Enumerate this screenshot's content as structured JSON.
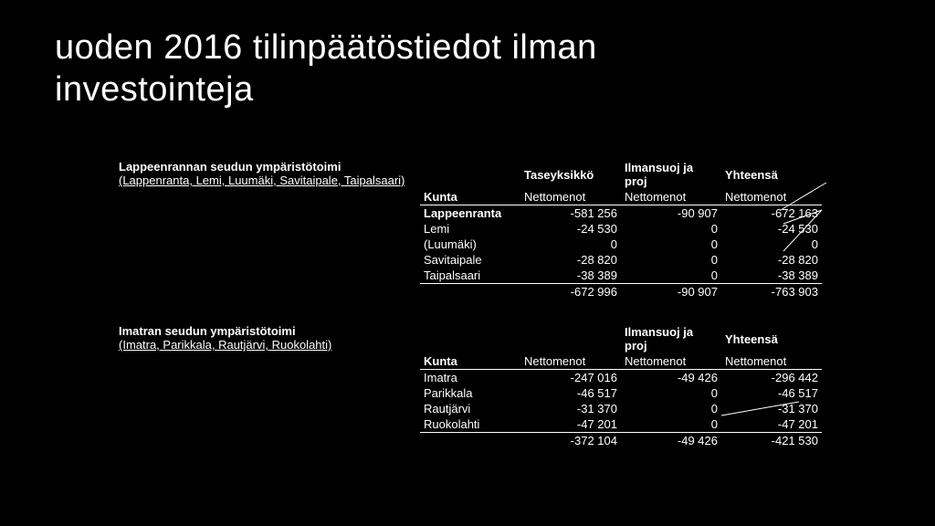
{
  "title_line1": "uoden 2016 tilinpäätöstiedot ilman",
  "title_line2": "investointeja",
  "section1": {
    "heading": "Lappeenrannan seudun ympäristötoimi",
    "sub": "(Lappenranta, Lemi, Luumäki, Savitaipale, Taipalsaari)",
    "col_kunta": "Kunta",
    "col1_top": "Taseyksikkö",
    "col1_sub": "Nettomenot",
    "col2_top": "Ilmansuoj ja proj",
    "col2_sub": "Nettomenot",
    "col3_top": "Yhteensä",
    "col3_sub": "Nettomenot",
    "rows": [
      {
        "kunta": "Lappeenranta",
        "c1": "-581 256",
        "c2": "-90 907",
        "c3": "-672 163",
        "bold": true
      },
      {
        "kunta": "Lemi",
        "c1": "-24 530",
        "c2": "0",
        "c3": "-24 530"
      },
      {
        "kunta": "(Luumäki)",
        "c1": "0",
        "c2": "0",
        "c3": "0"
      },
      {
        "kunta": "Savitaipale",
        "c1": "-28 820",
        "c2": "0",
        "c3": "-28 820"
      },
      {
        "kunta": "Taipalsaari",
        "c1": "-38 389",
        "c2": "0",
        "c3": "-38 389"
      }
    ],
    "totals": {
      "c1": "-672 996",
      "c2": "-90 907",
      "c3": "-763 903"
    }
  },
  "section2": {
    "heading": "Imatran seudun ympäristötoimi",
    "sub": "(Imatra, Parikkala, Rautjärvi, Ruokolahti)",
    "col_kunta": "Kunta",
    "col1_top": "",
    "col1_sub": "Nettomenot",
    "col2_top": "Ilmansuoj ja proj",
    "col2_sub": "Nettomenot",
    "col3_top": "Yhteensä",
    "col3_sub": "Nettomenot",
    "rows": [
      {
        "kunta": "Imatra",
        "c1": "-247 016",
        "c2": "-49 426",
        "c3": "-296 442"
      },
      {
        "kunta": "Parikkala",
        "c1": "-46 517",
        "c2": "0",
        "c3": "-46 517"
      },
      {
        "kunta": "Rautjärvi",
        "c1": "-31 370",
        "c2": "0",
        "c3": "-31 370"
      },
      {
        "kunta": "Ruokolahti",
        "c1": "-47 201",
        "c2": "0",
        "c3": "-47 201"
      }
    ],
    "totals": {
      "c1": "-372 104",
      "c2": "-49 426",
      "c3": "-421 530"
    }
  },
  "colors": {
    "bg": "#000000",
    "text": "#ffffff",
    "line": "#ffffff"
  }
}
